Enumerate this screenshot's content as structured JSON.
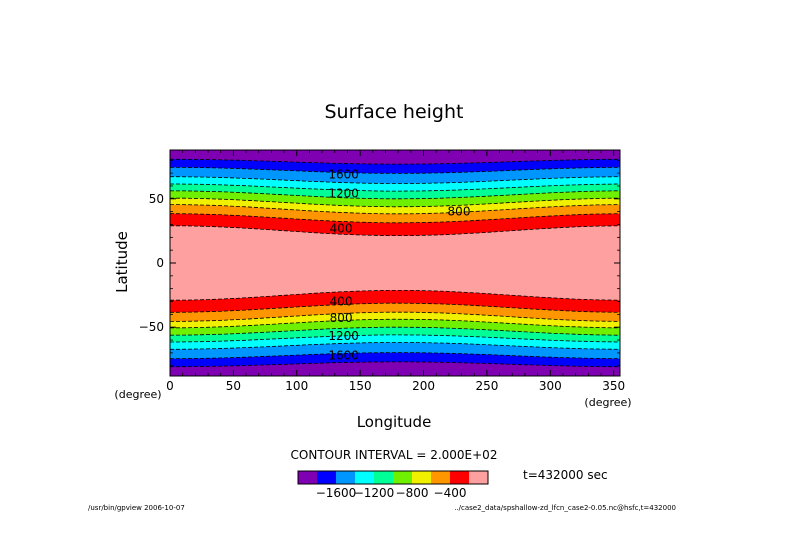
{
  "chart_data": {
    "type": "heatmap",
    "title": "Surface height",
    "xlabel": "Longitude",
    "ylabel": "Latitude",
    "xunit": "(degree)",
    "yunit": "(degree)",
    "xlim": [
      0,
      355
    ],
    "ylim": [
      -88,
      88
    ],
    "xticks": [
      0,
      50,
      100,
      150,
      200,
      250,
      300,
      350
    ],
    "yticks": [
      -50,
      0,
      50
    ],
    "contour_interval_text": "CONTOUR INTERVAL = 2.000E+02",
    "contour_interval": 200,
    "time_label": "t=432000 sec",
    "colorbar": {
      "levels": [
        -1800,
        -1600,
        -1400,
        -1200,
        -1000,
        -800,
        -600,
        -400,
        -200,
        0
      ],
      "tick_labels": [
        "−1600",
        "−1200",
        "−800",
        "−400"
      ],
      "colors": [
        "#7f00b2",
        "#0000ff",
        "#0096ff",
        "#00ffff",
        "#00ff96",
        "#6ef000",
        "#f0f000",
        "#ff9600",
        "#ff0000",
        "#ffa0a0"
      ]
    },
    "field_levels": [
      -1800,
      -1600,
      -1400,
      -1200,
      -1000,
      -800,
      -600,
      -400,
      -200,
      0
    ],
    "north_boundaries": {
      "levels": [
        -1800,
        -1600,
        -1400,
        -1200,
        -1000,
        -800,
        -600,
        -400,
        -200
      ],
      "lat_at_lon0": [
        80.8,
        74.5,
        67.2,
        61.5,
        56.2,
        50.5,
        45.5,
        38.4,
        29
      ],
      "lat_at_lon180": [
        77,
        69.8,
        61.9,
        56,
        50,
        43.8,
        38.3,
        31.3,
        21.3
      ]
    },
    "south_boundaries": {
      "levels": [
        -1800,
        -1600,
        -1400,
        -1200,
        -1000,
        -800,
        -600,
        -400,
        -200
      ],
      "lat_at_lon0": [
        -80.8,
        -74.5,
        -67.2,
        -61.5,
        -56.2,
        -50.5,
        -45.5,
        -38.4,
        -29
      ],
      "lat_at_lon180": [
        -77,
        -69.8,
        -61.9,
        -56,
        -50,
        -43.8,
        -38.3,
        -31.3,
        -21.3
      ]
    },
    "contour_labels": [
      {
        "text": "1600",
        "lon": 137,
        "lat": 69
      },
      {
        "text": "1200",
        "lon": 137,
        "lat": 54
      },
      {
        "text": "800",
        "lon": 228,
        "lat": 40
      },
      {
        "text": "400",
        "lon": 135,
        "lat": 27
      },
      {
        "text": "400",
        "lon": 135,
        "lat": -30
      },
      {
        "text": "800",
        "lon": 135,
        "lat": -43
      },
      {
        "text": "1200",
        "lon": 137,
        "lat": -57
      },
      {
        "text": "1600",
        "lon": 137,
        "lat": -72
      }
    ]
  },
  "footer": {
    "left": "/usr/bin/gpview  2006-10-07",
    "right": "../case2_data/spshallow-zd_lfcn_case2-0.05.nc@hsfc,t=432000"
  }
}
